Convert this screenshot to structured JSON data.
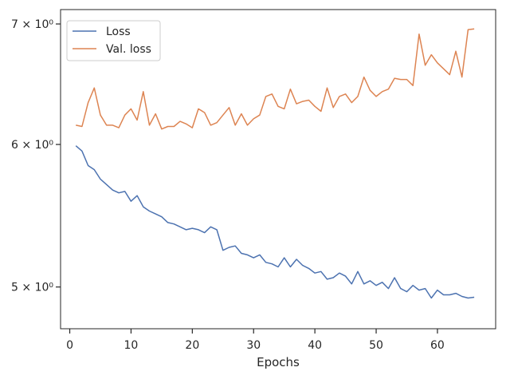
{
  "chart_data": {
    "type": "line",
    "title": "",
    "xlabel": "Epochs",
    "ylabel": "",
    "y_scale": "log",
    "xlim": [
      -1.5,
      69.5
    ],
    "ylim": [
      4.74,
      7.13
    ],
    "x_ticks": [
      0,
      10,
      20,
      30,
      40,
      50,
      60
    ],
    "x_tick_labels": [
      "0",
      "10",
      "20",
      "30",
      "40",
      "50",
      "60"
    ],
    "y_ticks": [
      5,
      6,
      7
    ],
    "y_tick_labels": [
      "5 × 10⁰",
      "6 × 10⁰",
      "7 × 10⁰"
    ],
    "grid": false,
    "legend_position": "top-left",
    "x": [
      1,
      2,
      3,
      4,
      5,
      6,
      7,
      8,
      9,
      10,
      11,
      12,
      13,
      14,
      15,
      16,
      17,
      18,
      19,
      20,
      21,
      22,
      23,
      24,
      25,
      26,
      27,
      28,
      29,
      30,
      31,
      32,
      33,
      34,
      35,
      36,
      37,
      38,
      39,
      40,
      41,
      42,
      43,
      44,
      45,
      46,
      47,
      48,
      49,
      50,
      51,
      52,
      53,
      54,
      55,
      56,
      57,
      58,
      59,
      60,
      61,
      62,
      63,
      64,
      65,
      66
    ],
    "series": [
      {
        "name": "Loss",
        "color": "#4c72b0",
        "values": [
          5.99,
          5.95,
          5.84,
          5.81,
          5.74,
          5.7,
          5.66,
          5.64,
          5.65,
          5.58,
          5.62,
          5.54,
          5.51,
          5.49,
          5.47,
          5.43,
          5.42,
          5.4,
          5.38,
          5.39,
          5.38,
          5.36,
          5.4,
          5.38,
          5.24,
          5.26,
          5.27,
          5.22,
          5.21,
          5.19,
          5.21,
          5.16,
          5.15,
          5.13,
          5.19,
          5.13,
          5.18,
          5.14,
          5.12,
          5.09,
          5.1,
          5.05,
          5.06,
          5.09,
          5.07,
          5.02,
          5.1,
          5.02,
          5.04,
          5.01,
          5.03,
          4.99,
          5.06,
          4.99,
          4.97,
          5.01,
          4.98,
          4.99,
          4.93,
          4.98,
          4.95,
          4.95,
          4.96,
          4.94,
          4.93,
          4.935
        ]
      },
      {
        "name": "Val. loss",
        "color": "#dd8452",
        "values": [
          6.15,
          6.14,
          6.33,
          6.45,
          6.23,
          6.15,
          6.15,
          6.13,
          6.23,
          6.28,
          6.19,
          6.42,
          6.15,
          6.24,
          6.12,
          6.14,
          6.14,
          6.18,
          6.16,
          6.13,
          6.28,
          6.25,
          6.15,
          6.17,
          6.23,
          6.29,
          6.15,
          6.24,
          6.15,
          6.2,
          6.23,
          6.38,
          6.4,
          6.3,
          6.28,
          6.44,
          6.32,
          6.34,
          6.35,
          6.3,
          6.26,
          6.45,
          6.29,
          6.38,
          6.4,
          6.33,
          6.38,
          6.54,
          6.43,
          6.38,
          6.42,
          6.44,
          6.53,
          6.52,
          6.52,
          6.47,
          6.91,
          6.64,
          6.73,
          6.66,
          6.61,
          6.56,
          6.76,
          6.54,
          6.95,
          6.955
        ]
      }
    ]
  }
}
